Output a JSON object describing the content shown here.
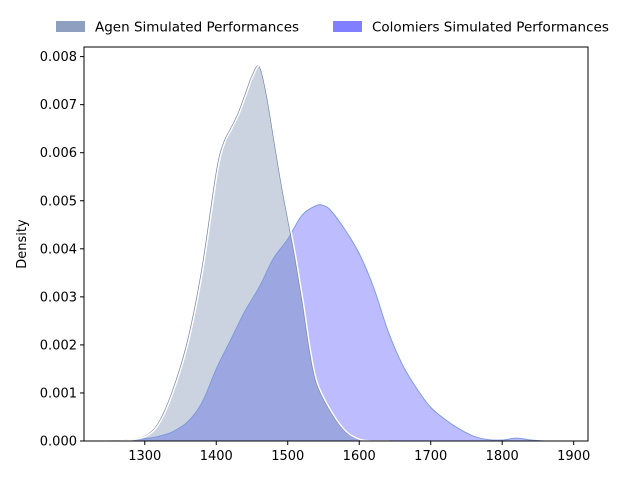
{
  "chart_data": {
    "type": "area",
    "title": "",
    "xlabel": "",
    "ylabel": "Density",
    "xlim": [
      1215,
      1920
    ],
    "ylim": [
      0,
      0.0082
    ],
    "xticks": [
      1300,
      1400,
      1500,
      1600,
      1700,
      1800,
      1900
    ],
    "yticks": [
      0.0,
      0.001,
      0.002,
      0.003,
      0.004,
      0.005,
      0.006,
      0.007,
      0.008
    ],
    "ytick_labels": [
      "0.000",
      "0.001",
      "0.002",
      "0.003",
      "0.004",
      "0.005",
      "0.006",
      "0.007",
      "0.008"
    ],
    "grid": false,
    "legend_position": "top, above plot",
    "series": [
      {
        "name": "Agen Simulated Performances",
        "color": "#8f9fbf",
        "fill_color": "#cbd3e0",
        "edge_color": "#ffffff",
        "x": [
          1240,
          1270,
          1300,
          1320,
          1340,
          1360,
          1380,
          1400,
          1410,
          1420,
          1430,
          1440,
          1450,
          1460,
          1470,
          1480,
          1490,
          1500,
          1510,
          1520,
          1530,
          1540,
          1560,
          1580,
          1600,
          1620,
          1640
        ],
        "y": [
          0.0,
          1e-05,
          0.0001,
          0.0004,
          0.0011,
          0.0021,
          0.0036,
          0.0056,
          0.0062,
          0.0065,
          0.0068,
          0.0072,
          0.0076,
          0.0078,
          0.0072,
          0.0063,
          0.0054,
          0.0046,
          0.0038,
          0.0029,
          0.0019,
          0.0012,
          0.0006,
          0.0002,
          3e-05,
          0.0,
          0.0
        ]
      },
      {
        "name": "Colomiers Simulated Performances",
        "color": "#7f7fff",
        "fill_color": "#bcbcff",
        "edge_color": "#7f9be0",
        "x": [
          1240,
          1270,
          1300,
          1320,
          1340,
          1360,
          1380,
          1400,
          1420,
          1440,
          1460,
          1480,
          1500,
          1520,
          1540,
          1550,
          1560,
          1580,
          1600,
          1620,
          1640,
          1660,
          1680,
          1700,
          1720,
          1740,
          1760,
          1780,
          1800,
          1820,
          1840,
          1860,
          1880
        ],
        "y": [
          0.0,
          1e-05,
          5e-05,
          0.0001,
          0.0002,
          0.0004,
          0.0008,
          0.0015,
          0.0021,
          0.0027,
          0.0032,
          0.0038,
          0.0042,
          0.0047,
          0.0049,
          0.0049,
          0.0048,
          0.0044,
          0.0039,
          0.0032,
          0.0023,
          0.0016,
          0.0011,
          0.0007,
          0.00045,
          0.00025,
          0.0001,
          3e-05,
          2e-05,
          6e-05,
          2e-05,
          0.0,
          0.0
        ]
      }
    ],
    "overlap_color": "#9ca6e0"
  }
}
